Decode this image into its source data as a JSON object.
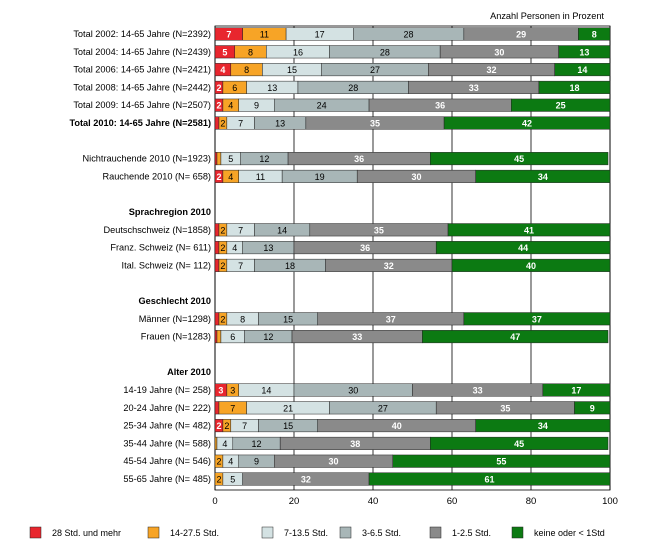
{
  "chart_data": {
    "type": "bar",
    "orientation": "horizontal-stacked-percent",
    "unit_label": "Anzahl Personen in Prozent",
    "xlim": [
      0,
      100
    ],
    "xticks": [
      "0",
      "20",
      "40",
      "60",
      "80",
      "100"
    ],
    "grid": true,
    "legend_position": "bottom",
    "series": [
      {
        "name": "28 Std. und mehr",
        "color": "#e8262e"
      },
      {
        "name": "14-27.5 Std.",
        "color": "#f7a426"
      },
      {
        "name": "7-13.5 Std.",
        "color": "#d4e2e3"
      },
      {
        "name": "3-6.5 Std.",
        "color": "#a8b6b7"
      },
      {
        "name": "1-2.5 Std.",
        "color": "#8a8a8a"
      },
      {
        "name": "keine oder < 1Std",
        "color": "#0c7a12"
      }
    ],
    "rows": [
      {
        "kind": "bar",
        "label": "Total 2002: 14-65 Jahre (N=2392)",
        "bold": false,
        "values": [
          7,
          11,
          17,
          28,
          29,
          8
        ]
      },
      {
        "kind": "bar",
        "label": "Total 2004: 14-65 Jahre (N=2439)",
        "bold": false,
        "values": [
          5,
          8,
          16,
          28,
          30,
          13
        ]
      },
      {
        "kind": "bar",
        "label": "Total 2006: 14-65 Jahre (N=2421)",
        "bold": false,
        "values": [
          4,
          8,
          15,
          27,
          32,
          14
        ]
      },
      {
        "kind": "bar",
        "label": "Total 2008: 14-65 Jahre (N=2442)",
        "bold": false,
        "values": [
          2,
          6,
          13,
          28,
          33,
          18
        ]
      },
      {
        "kind": "bar",
        "label": "Total 2009: 14-65 Jahre (N=2507)",
        "bold": false,
        "values": [
          2,
          4,
          9,
          24,
          36,
          25
        ]
      },
      {
        "kind": "bar",
        "label": "Total 2010: 14-65 Jahre (N=2581)",
        "bold": true,
        "values": [
          1,
          2,
          7,
          13,
          35,
          42
        ]
      },
      {
        "kind": "gap"
      },
      {
        "kind": "bar",
        "label": "Nichtrauchende 2010 (N=1923)",
        "bold": false,
        "values": [
          0.5,
          1,
          5,
          12,
          36,
          45
        ]
      },
      {
        "kind": "bar",
        "label": "Rauchende 2010 (N=  658)",
        "bold": false,
        "values": [
          2,
          4,
          11,
          19,
          30,
          34
        ]
      },
      {
        "kind": "gap"
      },
      {
        "kind": "header",
        "label": "Sprachregion 2010"
      },
      {
        "kind": "bar",
        "label": "Deutschschweiz (N=1858)",
        "bold": false,
        "values": [
          1,
          2,
          7,
          14,
          35,
          41
        ]
      },
      {
        "kind": "bar",
        "label": "Franz. Schweiz (N=  611)",
        "bold": false,
        "values": [
          1,
          2,
          4,
          13,
          36,
          44
        ]
      },
      {
        "kind": "bar",
        "label": "Ital. Schweiz (N=  112)",
        "bold": false,
        "values": [
          1,
          2,
          7,
          18,
          32,
          40
        ]
      },
      {
        "kind": "gap"
      },
      {
        "kind": "header",
        "label": "Geschlecht 2010"
      },
      {
        "kind": "bar",
        "label": "Männer (N=1298)",
        "bold": false,
        "values": [
          1,
          2,
          8,
          15,
          37,
          37
        ]
      },
      {
        "kind": "bar",
        "label": "Frauen (N=1283)",
        "bold": false,
        "values": [
          0.5,
          1,
          6,
          12,
          33,
          47
        ]
      },
      {
        "kind": "gap"
      },
      {
        "kind": "header",
        "label": "Alter 2010"
      },
      {
        "kind": "bar",
        "label": "14-19 Jahre (N=  258)",
        "bold": false,
        "values": [
          3,
          3,
          14,
          30,
          33,
          17
        ]
      },
      {
        "kind": "bar",
        "label": "20-24 Jahre (N=  222)",
        "bold": false,
        "values": [
          1,
          7,
          21,
          27,
          35,
          9
        ]
      },
      {
        "kind": "bar",
        "label": "25-34 Jahre (N=  482)",
        "bold": false,
        "values": [
          2,
          2,
          7,
          15,
          40,
          34
        ]
      },
      {
        "kind": "bar",
        "label": "35-44 Jahre (N=  588)",
        "bold": false,
        "values": [
          0.5,
          4,
          12,
          38,
          45
        ]
      },
      {
        "kind": "bar",
        "label": "45-54 Jahre (N=  546)",
        "bold": false,
        "values": [
          2,
          4,
          9,
          30,
          55
        ]
      },
      {
        "kind": "bar",
        "label": "55-65 Jahre (N=  485)",
        "bold": false,
        "values": [
          2,
          5,
          32,
          61
        ]
      }
    ],
    "shown_labels": [
      [
        "7",
        "11",
        "17",
        "28",
        "29",
        "8"
      ],
      [
        "5",
        "8",
        "16",
        "28",
        "30",
        "13"
      ],
      [
        "4",
        "8",
        "15",
        "27",
        "32",
        "14"
      ],
      [
        "2",
        "6",
        "13",
        "28",
        "33",
        "18"
      ],
      [
        "2",
        "4",
        "9",
        "24",
        "36",
        "25"
      ],
      [
        "",
        "2",
        "7",
        "13",
        "35",
        "42"
      ],
      null,
      [
        "",
        "",
        "5",
        "12",
        "36",
        "45"
      ],
      [
        "2",
        "4",
        "11",
        "19",
        "30",
        "34"
      ],
      null,
      null,
      [
        "",
        "2",
        "7",
        "14",
        "35",
        "41"
      ],
      [
        "",
        "2",
        "4",
        "13",
        "36",
        "44"
      ],
      [
        "",
        "2",
        "7",
        "18",
        "32",
        "40"
      ],
      null,
      null,
      [
        "",
        "2",
        "8",
        "15",
        "37",
        "37"
      ],
      [
        "",
        "",
        "6",
        "12",
        "33",
        "47"
      ],
      null,
      null,
      [
        "3",
        "3",
        "14",
        "30",
        "33",
        "17"
      ],
      [
        "",
        "7",
        "21",
        "27",
        "35",
        "9"
      ],
      [
        "2",
        "2",
        "7",
        "15",
        "40",
        "34"
      ],
      [
        "",
        "4",
        "12",
        "38",
        "45"
      ],
      [
        "2",
        "4",
        "9",
        "30",
        "55"
      ],
      [
        "2",
        "5",
        "32",
        "61"
      ]
    ],
    "series_index": [
      [
        0,
        1,
        2,
        3,
        4,
        5
      ],
      [
        0,
        1,
        2,
        3,
        4,
        5
      ],
      [
        0,
        1,
        2,
        3,
        4,
        5
      ],
      [
        0,
        1,
        2,
        3,
        4,
        5
      ],
      [
        0,
        1,
        2,
        3,
        4,
        5
      ],
      [
        0,
        1,
        2,
        3,
        4,
        5
      ],
      null,
      [
        0,
        1,
        2,
        3,
        4,
        5
      ],
      [
        0,
        1,
        2,
        3,
        4,
        5
      ],
      null,
      null,
      [
        0,
        1,
        2,
        3,
        4,
        5
      ],
      [
        0,
        1,
        2,
        3,
        4,
        5
      ],
      [
        0,
        1,
        2,
        3,
        4,
        5
      ],
      null,
      null,
      [
        0,
        1,
        2,
        3,
        4,
        5
      ],
      [
        0,
        1,
        2,
        3,
        4,
        5
      ],
      null,
      null,
      [
        0,
        1,
        2,
        3,
        4,
        5
      ],
      [
        0,
        1,
        2,
        3,
        4,
        5
      ],
      [
        0,
        1,
        2,
        3,
        4,
        5
      ],
      [
        1,
        2,
        3,
        4,
        5
      ],
      [
        1,
        2,
        3,
        4,
        5
      ],
      [
        1,
        2,
        4,
        5
      ]
    ]
  }
}
